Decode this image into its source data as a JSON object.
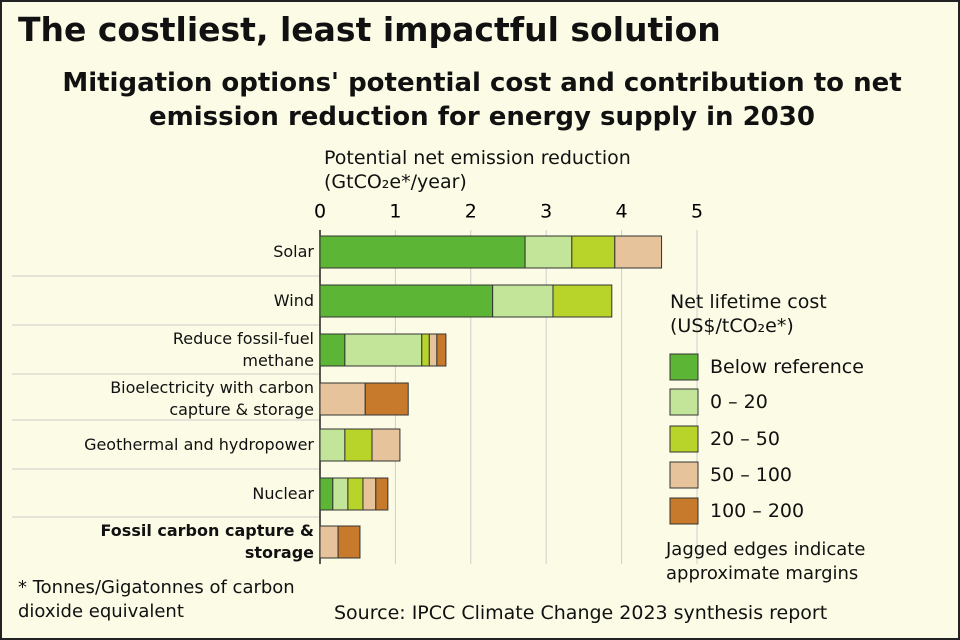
{
  "chart_data": {
    "type": "stacked-bar-horizontal",
    "title": "The costliest, least impactful solution",
    "subtitle": "Mitigation options' potential cost and contribution to net emission reduction for energy supply in 2030",
    "x_label": "Potential net emission reduction (GtCO₂e*/year)",
    "legend_title": "Net lifetime cost (US$/tCO₂e*)",
    "note": "Jagged edges indicate approximate margins",
    "footnote": "* Tonnes/Gigatonnes of carbon dioxide equivalent",
    "source": "Source: IPCC Climate Change 2023 synthesis report",
    "categories": [
      "Solar",
      "Wind",
      "Reduce fossil-fuel methane",
      "Bioelectricity with carbon capture & storage",
      "Geothermal and hydropower",
      "Nuclear",
      "Fossil carbon capture & storage"
    ],
    "series": [
      {
        "name": "Below reference",
        "color": "#5db535",
        "values": [
          2.72,
          2.29,
          0.33,
          null,
          null,
          0.17,
          null
        ]
      },
      {
        "name": "0 – 20",
        "color": "#c3e59a",
        "values": [
          0.62,
          0.8,
          1.02,
          null,
          0.33,
          0.2,
          null
        ]
      },
      {
        "name": "20 – 50",
        "color": "#b8d42a",
        "values": [
          0.57,
          0.78,
          0.1,
          null,
          0.36,
          0.2,
          null
        ]
      },
      {
        "name": "50 – 100",
        "color": "#e6c39a",
        "values": [
          0.62,
          null,
          0.1,
          0.6,
          0.37,
          0.17,
          0.24
        ]
      },
      {
        "name": "100 – 200",
        "color": "#c87a2c",
        "values": [
          null,
          null,
          0.12,
          0.57,
          null,
          0.16,
          0.29
        ]
      }
    ],
    "xlim": [
      0,
      5
    ],
    "xticks": [
      0,
      1,
      2,
      3,
      4,
      5
    ],
    "grid": true
  }
}
